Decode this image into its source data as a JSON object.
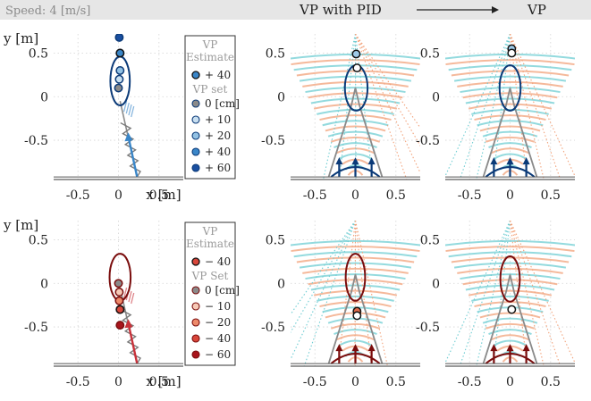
{
  "header": {
    "speed_label": "Speed: 4 [m/s]",
    "title_left": "VP with PID",
    "title_right": "VP"
  },
  "chart_data": [
    {
      "type": "scatter",
      "id": "top-left",
      "xlabel": "x [m]",
      "ylabel": "y [m]",
      "xlim": [
        -0.8,
        0.8
      ],
      "ylim": [
        -0.95,
        0.72
      ],
      "xticks": [
        "-0.5",
        "0",
        "0.5"
      ],
      "yticks": [
        "0.5",
        "0",
        "-0.5"
      ],
      "grid": true,
      "legend": {
        "placement": "right",
        "title_estimate": [
          "VP",
          "Estimate"
        ],
        "estimate_entry": "+ 40",
        "title_set": "VP set",
        "entries": [
          "0 [cm]",
          "+ 10",
          "+ 20",
          "+ 40",
          "+ 60"
        ]
      },
      "points": [
        {
          "x": 0.0,
          "y": 0.1,
          "series": "0 [cm]"
        },
        {
          "x": 0.01,
          "y": 0.2,
          "series": "+ 10"
        },
        {
          "x": 0.02,
          "y": 0.3,
          "series": "+ 20"
        },
        {
          "x": 0.02,
          "y": 0.5,
          "series": "+ 40"
        },
        {
          "x": 0.01,
          "y": 0.68,
          "series": "+ 60"
        },
        {
          "x": 0.02,
          "y": 0.5,
          "series": "Estimate + 40"
        }
      ],
      "ellipse": {
        "cx": 0.02,
        "cy": 0.18,
        "rx": 0.12,
        "ry": 0.28
      }
    },
    {
      "type": "scatter",
      "id": "top-middle",
      "xlim": [
        -0.8,
        0.8
      ],
      "ylim": [
        -0.95,
        0.72
      ],
      "xticks": [
        "-0.5",
        "0",
        "0.5"
      ],
      "yticks": [
        "0.5",
        "0",
        "-0.5"
      ],
      "grid": true,
      "points": [
        {
          "x": 0.01,
          "y": 0.49,
          "series": "Estimate"
        },
        {
          "x": 0.02,
          "y": 0.33,
          "series": "Estimate"
        }
      ],
      "ellipse": {
        "cx": 0.01,
        "cy": 0.1,
        "rx": 0.14,
        "ry": 0.26
      }
    },
    {
      "type": "scatter",
      "id": "top-right",
      "xlim": [
        -0.8,
        0.8
      ],
      "ylim": [
        -0.95,
        0.72
      ],
      "xticks": [
        "-0.5",
        "0",
        "0.5"
      ],
      "yticks": [
        "0.5",
        "0",
        "-0.5"
      ],
      "grid": true,
      "points": [
        {
          "x": 0.02,
          "y": 0.55,
          "series": "Estimate"
        },
        {
          "x": 0.02,
          "y": 0.5,
          "series": "Estimate"
        }
      ],
      "ellipse": {
        "cx": 0.0,
        "cy": 0.1,
        "rx": 0.13,
        "ry": 0.26
      }
    },
    {
      "type": "scatter",
      "id": "bottom-left",
      "xlabel": "x [m]",
      "ylabel": "y [m]",
      "xlim": [
        -0.8,
        0.8
      ],
      "ylim": [
        -0.95,
        0.72
      ],
      "xticks": [
        "-0.5",
        "0",
        "0.5"
      ],
      "yticks": [
        "0.5",
        "0",
        "-0.5"
      ],
      "grid": true,
      "legend": {
        "placement": "right",
        "title_estimate": [
          "VP",
          "Estimate"
        ],
        "estimate_entry": "− 40",
        "title_set": "VP Set",
        "entries": [
          "0 [cm]",
          "− 10",
          "− 20",
          "− 40",
          "− 60"
        ]
      },
      "points": [
        {
          "x": 0.0,
          "y": 0.0,
          "series": "0 [cm]"
        },
        {
          "x": 0.01,
          "y": -0.1,
          "series": "− 10"
        },
        {
          "x": 0.01,
          "y": -0.2,
          "series": "− 20"
        },
        {
          "x": 0.02,
          "y": -0.3,
          "series": "− 40"
        },
        {
          "x": 0.02,
          "y": -0.48,
          "series": "− 60"
        },
        {
          "x": 0.02,
          "y": -0.3,
          "series": "Estimate − 40"
        }
      ],
      "ellipse": {
        "cx": 0.02,
        "cy": 0.07,
        "rx": 0.13,
        "ry": 0.27
      }
    },
    {
      "type": "scatter",
      "id": "bottom-middle",
      "xlim": [
        -0.8,
        0.8
      ],
      "ylim": [
        -0.95,
        0.72
      ],
      "xticks": [
        "-0.5",
        "0",
        "0.5"
      ],
      "yticks": [
        "0.5",
        "0",
        "-0.5"
      ],
      "grid": true,
      "points": [
        {
          "x": 0.02,
          "y": -0.32,
          "series": "Estimate"
        },
        {
          "x": 0.02,
          "y": -0.37,
          "series": "Estimate"
        }
      ],
      "ellipse": {
        "cx": 0.0,
        "cy": 0.07,
        "rx": 0.12,
        "ry": 0.27
      }
    },
    {
      "type": "scatter",
      "id": "bottom-right",
      "xlim": [
        -0.8,
        0.8
      ],
      "ylim": [
        -0.95,
        0.72
      ],
      "xticks": [
        "-0.5",
        "0",
        "0.5"
      ],
      "yticks": [
        "0.5",
        "0",
        "-0.5"
      ],
      "grid": true,
      "points": [
        {
          "x": 0.02,
          "y": -0.3,
          "series": "Estimate"
        }
      ],
      "ellipse": {
        "cx": 0.0,
        "cy": 0.05,
        "rx": 0.12,
        "ry": 0.26
      }
    }
  ],
  "colors": {
    "blue_dark": "#0b3a78",
    "blue_series": [
      "#8a8a8a",
      "#c8dff0",
      "#92c1e3",
      "#3a86c8",
      "#1a4fa0"
    ],
    "red_dark": "#7a0d0d",
    "red_series": [
      "#8a8a8a",
      "#f7c9b6",
      "#ee8a6a",
      "#d8463a",
      "#a8141c"
    ],
    "orange_arc": "#f2a27a",
    "cyan_arc": "#6fcdd3",
    "header_bg": "#e6e6e6"
  }
}
